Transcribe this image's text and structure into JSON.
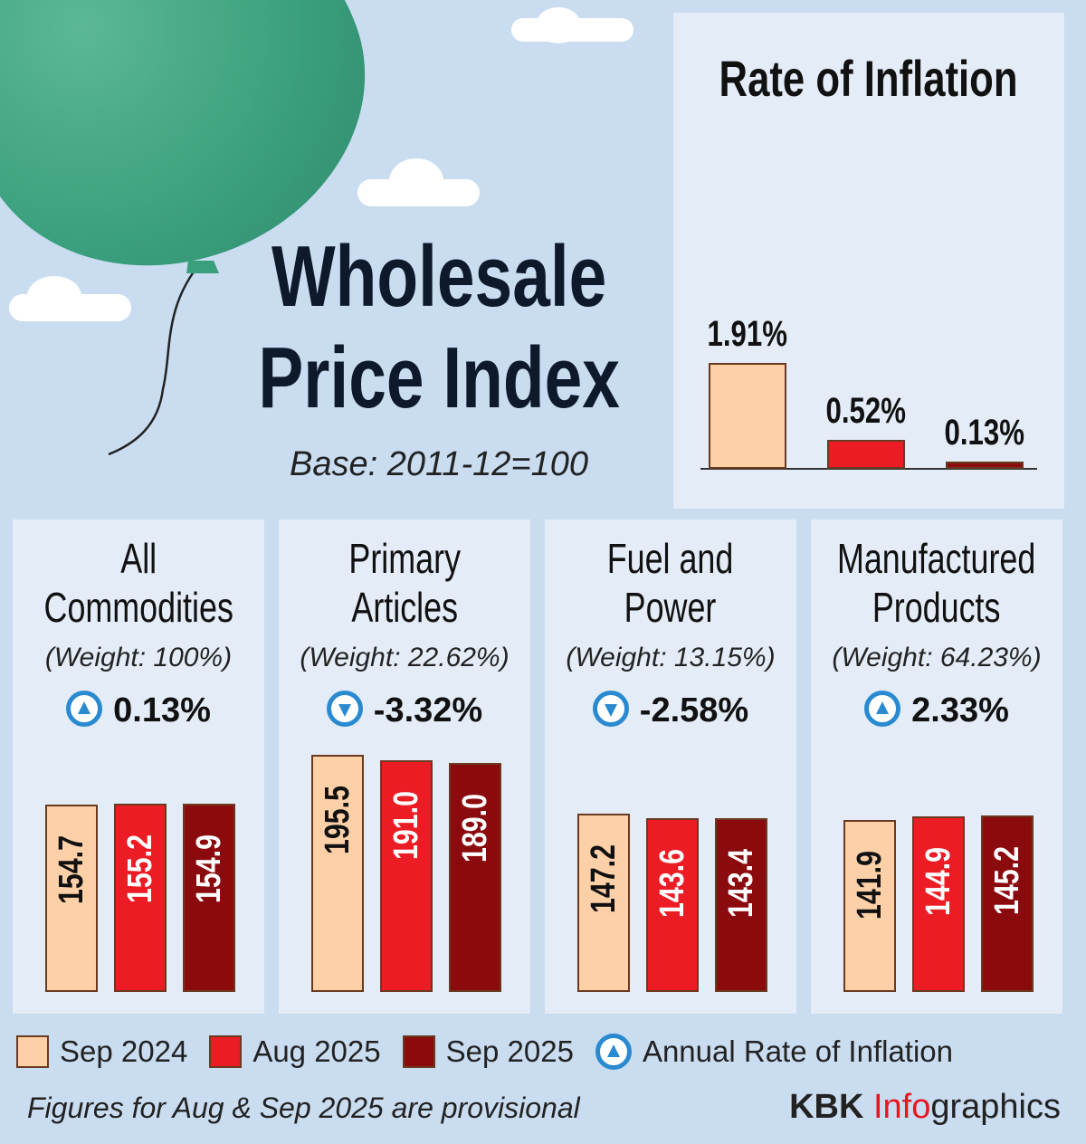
{
  "header": {
    "title_line1": "Wholesale",
    "title_line2": "Price Index",
    "base": "Base: 2011-12=100"
  },
  "colors": {
    "sep2024": "#fdd0a8",
    "aug2025": "#ec1c24",
    "sep2025": "#8b0a0e",
    "arrow": "#2a8ad0",
    "background": "#c9dcf0"
  },
  "chart_data": [
    {
      "type": "bar",
      "title": "Rate of Inflation",
      "categories": [
        "Sep 2024",
        "Aug 2025",
        "Sep 2025"
      ],
      "values": [
        1.91,
        0.52,
        0.13
      ],
      "labels": [
        "1.91%",
        "0.52%",
        "0.13%"
      ]
    },
    {
      "type": "bar",
      "title_line1": "All",
      "title_line2": "Commodities",
      "weight": "(Weight: 100%)",
      "change": "0.13%",
      "direction": "up",
      "categories": [
        "Sep 2024",
        "Aug 2025",
        "Sep 2025"
      ],
      "values": [
        154.7,
        155.2,
        154.9
      ],
      "labels": [
        "154.7",
        "155.2",
        "154.9"
      ]
    },
    {
      "type": "bar",
      "title_line1": "Primary",
      "title_line2": "Articles",
      "weight": "(Weight: 22.62%)",
      "change": "-3.32%",
      "direction": "down",
      "categories": [
        "Sep 2024",
        "Aug 2025",
        "Sep 2025"
      ],
      "values": [
        195.5,
        191.0,
        189.0
      ],
      "labels": [
        "195.5",
        "191.0",
        "189.0"
      ]
    },
    {
      "type": "bar",
      "title_line1": "Fuel and",
      "title_line2": "Power",
      "weight": "(Weight: 13.15%)",
      "change": "-2.58%",
      "direction": "down",
      "categories": [
        "Sep 2024",
        "Aug 2025",
        "Sep 2025"
      ],
      "values": [
        147.2,
        143.6,
        143.4
      ],
      "labels": [
        "147.2",
        "143.6",
        "143.4"
      ]
    },
    {
      "type": "bar",
      "title_line1": "Manufactured",
      "title_line2": "Products",
      "weight": "(Weight: 64.23%)",
      "change": "2.33%",
      "direction": "up",
      "categories": [
        "Sep 2024",
        "Aug 2025",
        "Sep 2025"
      ],
      "values": [
        141.9,
        144.9,
        145.2
      ],
      "labels": [
        "141.9",
        "144.9",
        "145.2"
      ]
    }
  ],
  "legend": {
    "items": [
      "Sep 2024",
      "Aug 2025",
      "Sep 2025"
    ],
    "arrow_label": "Annual Rate of Inflation"
  },
  "footer": {
    "note": "Figures for Aug & Sep 2025 are provisional",
    "brand_a": "KBK ",
    "brand_b": "Info",
    "brand_c": "graphics"
  }
}
